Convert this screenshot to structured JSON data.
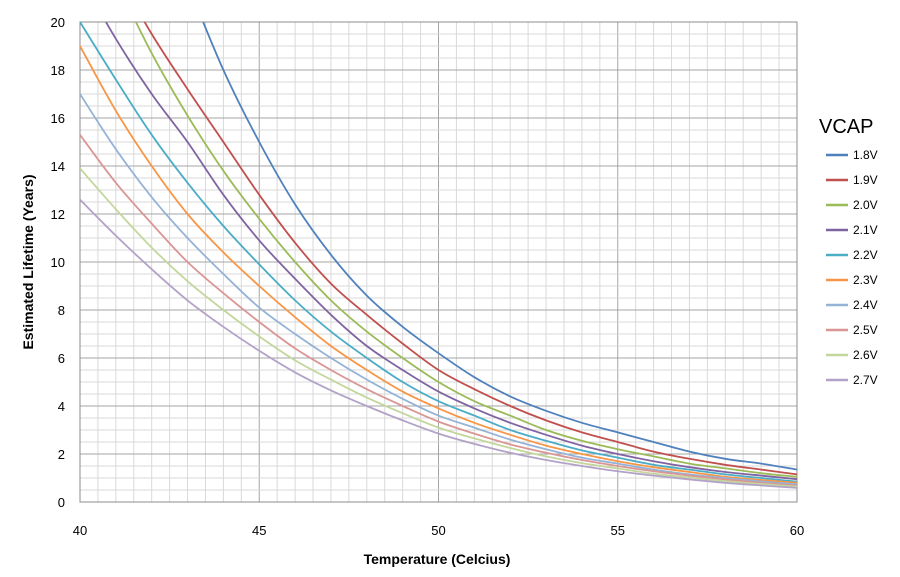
{
  "chart_data": {
    "type": "line",
    "xlabel": "Temperature (Celcius)",
    "ylabel": "Estimated Lifetime (Years)",
    "xlim": [
      40,
      60
    ],
    "ylim": [
      0,
      20
    ],
    "x_ticks": [
      "40",
      "45",
      "50",
      "55",
      "60"
    ],
    "y_ticks": [
      "0",
      "2",
      "4",
      "6",
      "8",
      "10",
      "12",
      "14",
      "16",
      "18",
      "20"
    ],
    "grid": "major and minor",
    "legend_title": "VCAP",
    "legend_position": "right",
    "x": [
      40,
      41,
      42,
      43,
      44,
      45,
      46,
      47,
      48,
      49,
      50,
      51,
      52,
      53,
      54,
      55,
      56,
      57,
      58,
      59,
      60
    ],
    "series": [
      {
        "name": "1.8V",
        "color": "#4f81bd",
        "values": [
          null,
          null,
          null,
          null,
          18.0,
          15.0,
          12.4,
          10.3,
          8.6,
          7.3,
          6.2,
          5.2,
          4.4,
          3.8,
          3.3,
          2.9,
          2.5,
          2.1,
          1.8,
          1.6,
          1.35
        ]
      },
      {
        "name": "1.9V",
        "color": "#c0504d",
        "values": [
          null,
          null,
          19.5,
          17.2,
          15.0,
          12.8,
          10.8,
          9.1,
          7.8,
          6.6,
          5.5,
          4.7,
          4.0,
          3.4,
          2.9,
          2.5,
          2.1,
          1.8,
          1.55,
          1.35,
          1.15
        ]
      },
      {
        "name": "2.0V",
        "color": "#9bbb59",
        "values": [
          null,
          null,
          18.7,
          16.1,
          13.8,
          11.8,
          10.0,
          8.4,
          7.1,
          6.0,
          5.0,
          4.2,
          3.6,
          3.0,
          2.55,
          2.2,
          1.9,
          1.6,
          1.4,
          1.2,
          1.05
        ]
      },
      {
        "name": "2.1V",
        "color": "#8064a2",
        "values": [
          null,
          19.3,
          17.0,
          15.0,
          12.8,
          10.9,
          9.3,
          7.8,
          6.5,
          5.5,
          4.6,
          3.9,
          3.3,
          2.8,
          2.35,
          2.0,
          1.7,
          1.45,
          1.25,
          1.1,
          0.95
        ]
      },
      {
        "name": "2.2V",
        "color": "#4bacc6",
        "values": [
          20.0,
          17.6,
          15.3,
          13.3,
          11.5,
          9.9,
          8.4,
          7.1,
          6.0,
          5.0,
          4.2,
          3.6,
          3.0,
          2.55,
          2.15,
          1.85,
          1.55,
          1.35,
          1.15,
          1.0,
          0.85
        ]
      },
      {
        "name": "2.3V",
        "color": "#f79646",
        "values": [
          19.0,
          16.3,
          14.0,
          12.0,
          10.4,
          9.0,
          7.7,
          6.5,
          5.5,
          4.6,
          3.9,
          3.3,
          2.8,
          2.35,
          2.0,
          1.7,
          1.45,
          1.25,
          1.05,
          0.92,
          0.8
        ]
      },
      {
        "name": "2.4V",
        "color": "#95b3d7",
        "values": [
          17.0,
          14.7,
          12.7,
          11.0,
          9.5,
          8.1,
          7.0,
          6.0,
          5.1,
          4.3,
          3.6,
          3.1,
          2.6,
          2.2,
          1.85,
          1.6,
          1.35,
          1.15,
          1.0,
          0.86,
          0.74
        ]
      },
      {
        "name": "2.5V",
        "color": "#d99694",
        "values": [
          15.3,
          13.3,
          11.6,
          10.0,
          8.7,
          7.5,
          6.4,
          5.5,
          4.7,
          4.0,
          3.35,
          2.85,
          2.4,
          2.05,
          1.75,
          1.5,
          1.28,
          1.1,
          0.94,
          0.8,
          0.68
        ]
      },
      {
        "name": "2.6V",
        "color": "#c3d69b",
        "values": [
          13.9,
          12.2,
          10.6,
          9.2,
          8.0,
          6.9,
          5.9,
          5.1,
          4.35,
          3.7,
          3.1,
          2.65,
          2.25,
          1.9,
          1.62,
          1.4,
          1.18,
          1.02,
          0.87,
          0.75,
          0.64
        ]
      },
      {
        "name": "2.7V",
        "color": "#b3a2c7",
        "values": [
          12.6,
          11.1,
          9.7,
          8.4,
          7.3,
          6.3,
          5.4,
          4.65,
          4.0,
          3.4,
          2.85,
          2.42,
          2.05,
          1.75,
          1.5,
          1.28,
          1.1,
          0.94,
          0.8,
          0.69,
          0.59
        ]
      }
    ]
  }
}
